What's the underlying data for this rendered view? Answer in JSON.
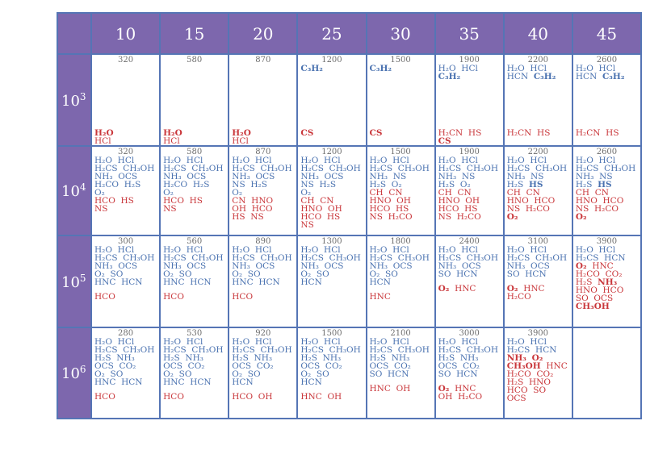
{
  "header": {
    "columns": [
      "10",
      "15",
      "20",
      "25",
      "30",
      "35",
      "40",
      "45"
    ]
  },
  "rows": [
    {
      "label_base": "10",
      "label_exp": "3",
      "cells": [
        {
          "temp": "320",
          "blue": [],
          "red_mid": [],
          "red_low": [
            "H₂O",
            "HCl"
          ]
        },
        {
          "temp": "580",
          "blue": [],
          "red_mid": [],
          "red_low": [
            "H₂O",
            "HCl"
          ]
        },
        {
          "temp": "870",
          "blue": [],
          "red_mid": [],
          "red_low": [
            "H₂O",
            "HCl"
          ]
        },
        {
          "temp": "1200",
          "blue": [
            "C₃H₂"
          ],
          "red_mid": [],
          "red_low": [
            "CS"
          ]
        },
        {
          "temp": "1500",
          "blue": [
            "C₃H₂"
          ],
          "red_mid": [],
          "red_low": [
            "CS"
          ]
        },
        {
          "temp": "1900",
          "blue": [
            "H₂O HCl",
            "C₃H₂"
          ],
          "red_mid": [],
          "red_low": [
            "H₂CN HS",
            "CS"
          ]
        },
        {
          "temp": "2200",
          "blue": [
            "H₂O HCl",
            "HCN C₃H₂"
          ],
          "red_mid": [],
          "red_low": [
            "H₂CN HS"
          ]
        },
        {
          "temp": "2600",
          "blue": [
            "H₂O HCl",
            "HCN C₃H₂"
          ],
          "red_mid": [],
          "red_low": [
            "H₂CN HS"
          ]
        }
      ]
    },
    {
      "label_base": "10",
      "label_exp": "4",
      "cells": [
        {
          "temp": "320",
          "blue": [
            "H₂O HCl",
            "H₂CS CH₃OH",
            "NH₃ OCS",
            "H₂CO H₂S",
            "O₂"
          ],
          "red": [
            "HCO HS",
            "NS"
          ]
        },
        {
          "temp": "580",
          "blue": [
            "H₂O HCl",
            "H₂CS CH₃OH",
            "NH₃ OCS",
            "H₂CO H₂S",
            "O₂"
          ],
          "red": [
            "HCO HS",
            "NS"
          ]
        },
        {
          "temp": "870",
          "blue": [
            "H₂O HCl",
            "H₂CS CH₃OH",
            "NH₃ OCS",
            "NS H₂S",
            "O₂"
          ],
          "red": [
            "CN HNO",
            "OH HCO",
            "HS NS"
          ]
        },
        {
          "temp": "1200",
          "blue": [
            "H₂O HCl",
            "H₂CS CH₃OH",
            "NH₃ OCS",
            "NS H₂S",
            "O₂"
          ],
          "red": [
            "CH CN",
            "HNO OH",
            "HCO HS",
            "NS"
          ]
        },
        {
          "temp": "1500",
          "blue": [
            "H₂O HCl",
            "H₂CS CH₃OH",
            "NH₃ NS",
            "H₂S O₂"
          ],
          "red": [
            "CH CN",
            "HNO OH",
            "HCO HS",
            "NS H₂CO"
          ]
        },
        {
          "temp": "1900",
          "blue": [
            "H₂O HCl",
            "H₂CS CH₃OH",
            "NH₃ NS",
            "H₂S O₂"
          ],
          "red": [
            "CH CN",
            "HNO OH",
            "HCO HS",
            "NS H₂CO"
          ]
        },
        {
          "temp": "2200",
          "blue": [
            "H₂O HCl",
            "H₂CS CH₃OH",
            "NH₃ NS",
            "H₂S HS"
          ],
          "red": [
            "CH CN",
            "HNO HCO",
            "NS H₂CO",
            "O₂"
          ]
        },
        {
          "temp": "2600",
          "blue": [
            "H₂O HCl",
            "H₂CS CH₃OH",
            "NH₃ NS",
            "H₂S HS"
          ],
          "red": [
            "CH CN",
            "HNO HCO",
            "NS H₂CO",
            "O₂"
          ]
        }
      ]
    },
    {
      "label_base": "10",
      "label_exp": "5",
      "cells": [
        {
          "temp": "300",
          "blue": [
            "H₂O HCl",
            "H₂CS CH₃OH",
            "NH₃ OCS",
            "O₂ SO",
            "HNC HCN"
          ],
          "red": [
            "HCO"
          ]
        },
        {
          "temp": "560",
          "blue": [
            "H₂O HCl",
            "H₂CS CH₃OH",
            "NH₃ OCS",
            "O₂ SO",
            "HNC HCN"
          ],
          "red": [
            "HCO"
          ]
        },
        {
          "temp": "890",
          "blue": [
            "H₂O HCl",
            "H₂CS CH₃OH",
            "NH₃ OCS",
            "O₂ SO",
            "HNC HCN"
          ],
          "red": [
            "HCO"
          ]
        },
        {
          "temp": "1300",
          "blue": [
            "H₂O HCl",
            "H₂CS CH₃OH",
            "NH₃ OCS",
            "O₂ SO",
            "HCN"
          ],
          "red": []
        },
        {
          "temp": "1800",
          "blue": [
            "H₂O HCl",
            "H₂CS CH₃OH",
            "NH₃ OCS",
            "O₂ SO",
            "HCN"
          ],
          "red": [
            "HNC"
          ]
        },
        {
          "temp": "2400",
          "blue": [
            "H₂O HCl",
            "H₂CS CH₃OH",
            "NH₃ OCS",
            "SO HCN"
          ],
          "red": [
            "O₂ HNC"
          ]
        },
        {
          "temp": "3100",
          "blue": [
            "H₂O HCl",
            "H₂CS CH₃OH",
            "NH₃ OCS",
            "SO HCN"
          ],
          "red": [
            "O₂ HNC",
            "H₂CO"
          ]
        },
        {
          "temp": "3900",
          "blue": [
            "H₂O HCl",
            "H₂CS HCN"
          ],
          "red": [
            "O₂ HNC",
            "H₂CO CO₂",
            "H₂S NH₃",
            "HNO HCO",
            "SO OCS",
            "CH₃OH"
          ]
        }
      ]
    },
    {
      "label_base": "10",
      "label_exp": "6",
      "cells": [
        {
          "temp": "280",
          "blue": [
            "H₂O HCl",
            "H₂CS CH₃OH",
            "H₂S NH₃",
            "OCS CO₂",
            "O₂ SO",
            "HNC HCN"
          ],
          "red": [
            "HCO"
          ]
        },
        {
          "temp": "530",
          "blue": [
            "H₂O HCl",
            "H₂CS CH₃OH",
            "H₂S NH₃",
            "OCS CO₂",
            "O₂ SO",
            "HNC HCN"
          ],
          "red": [
            "HCO"
          ]
        },
        {
          "temp": "920",
          "blue": [
            "H₂O HCl",
            "H₂CS CH₃OH",
            "H₂S NH₃",
            "OCS CO₂",
            "O₂ SO",
            "HCN"
          ],
          "red": [
            "HCO OH"
          ]
        },
        {
          "temp": "1500",
          "blue": [
            "H₂O HCl",
            "H₂CS CH₃OH",
            "H₂S NH₃",
            "OCS CO₂",
            "O₂ SO",
            "HCN"
          ],
          "red": [
            "HNC OH"
          ]
        },
        {
          "temp": "2100",
          "blue": [
            "H₂O HCl",
            "H₂CS CH₃OH",
            "H₂S NH₃",
            "OCS CO₂",
            "SO HCN"
          ],
          "red": [
            "HNC OH"
          ]
        },
        {
          "temp": "3000",
          "blue": [
            "H₂O HCl",
            "H₂CS CH₃OH",
            "H₂S NH₃",
            "OCS CO₂",
            "SO HCN"
          ],
          "red": [
            "O₂ HNC",
            "OH H₂CO"
          ]
        },
        {
          "temp": "3900",
          "blue": [
            "H₂O HCl",
            "H₂CS HCN"
          ],
          "red": [
            "NH₃ O₂",
            "CH₃OH HNC",
            "H₂CO CO₂",
            "H₂S HNO",
            "HCO SO",
            "OCS"
          ]
        },
        {
          "temp": "",
          "blue": [],
          "red": []
        }
      ]
    }
  ],
  "colors": {
    "header_bg": "#7d67ad",
    "grid": "#5575b5",
    "blue_text": "#4a72b0",
    "red_text": "#c9363a",
    "temp_text": "#6d6d6d"
  }
}
